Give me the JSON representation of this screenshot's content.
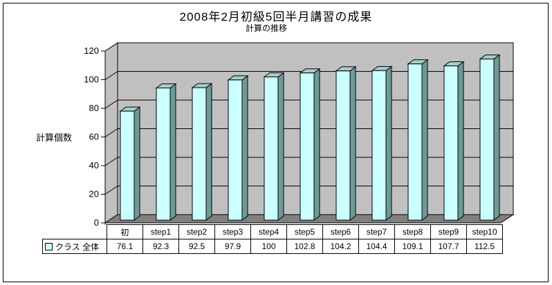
{
  "chart_data": {
    "type": "bar",
    "style": "3d-column",
    "title": "2008年2月初級5回半月講習の成果",
    "subtitle": "計算の推移",
    "ylabel": "計算個数",
    "xlabel": "",
    "categories": [
      "初",
      "step1",
      "step2",
      "step3",
      "step4",
      "step5",
      "step6",
      "step7",
      "step8",
      "step9",
      "step10"
    ],
    "series": [
      {
        "name": "クラス 全体",
        "values": [
          76.1,
          92.3,
          92.5,
          97.9,
          100,
          102.8,
          104.2,
          104.4,
          109.1,
          107.7,
          112.5
        ]
      }
    ],
    "ylim": [
      0,
      120
    ],
    "yticks": [
      0,
      20,
      40,
      60,
      80,
      100,
      120
    ],
    "grid": true,
    "legend_position": "data-table-left",
    "colors": {
      "bar_front": "#CCFFFF",
      "bar_top": "#A6CBCB",
      "bar_side": "#6E9999",
      "wall": "#C0C0C0",
      "floor": "#808080",
      "gridline": "#000000",
      "text": "#000000",
      "background": "#FFFFFF"
    }
  }
}
